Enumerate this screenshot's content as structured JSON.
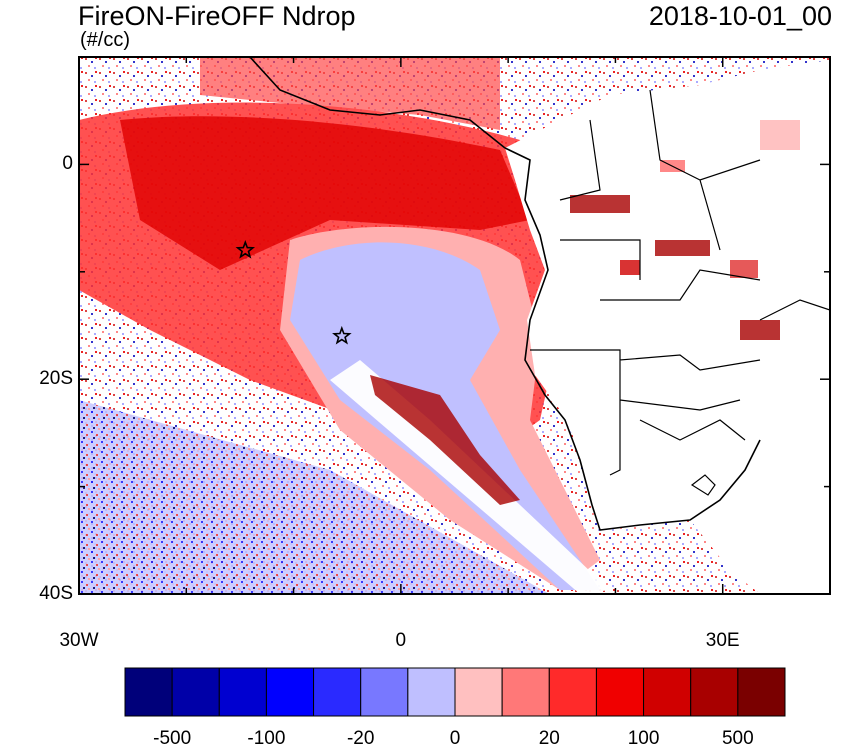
{
  "title": "FireON-FireOFF Ndrop",
  "date": "2018-10-01_00",
  "units": "(#/cc)",
  "map": {
    "lat_labels": [
      {
        "lat": 0,
        "label": "0"
      },
      {
        "lat": -20,
        "label": "20S"
      },
      {
        "lat": -40,
        "label": "40S"
      }
    ],
    "lon_labels": [
      {
        "lon": -30,
        "label": "30W"
      },
      {
        "lon": 0,
        "label": "0"
      },
      {
        "lon": 30,
        "label": "30E"
      }
    ],
    "lon_range": [
      -30,
      40
    ],
    "lat_range": [
      -40,
      10
    ],
    "markers": [
      {
        "name": "star-marker-1",
        "lon": -14.5,
        "lat": -8
      },
      {
        "name": "star-marker-2",
        "lon": -5.5,
        "lat": -16
      }
    ]
  },
  "colorbar": {
    "colors": [
      "#00007a",
      "#0000a8",
      "#0000d0",
      "#0000ff",
      "#2a2aff",
      "#7878ff",
      "#bfbfff",
      "#ffc0c0",
      "#ff7878",
      "#ff2a2a",
      "#f00000",
      "#d00000",
      "#a80000",
      "#7a0000"
    ],
    "labels": [
      {
        "boundary": 1,
        "text": "-500"
      },
      {
        "boundary": 3,
        "text": "-100"
      },
      {
        "boundary": 5,
        "text": "-20"
      },
      {
        "boundary": 7,
        "text": "0"
      },
      {
        "boundary": 9,
        "text": "20"
      },
      {
        "boundary": 11,
        "text": "100"
      },
      {
        "boundary": 13,
        "text": "500"
      }
    ]
  }
}
